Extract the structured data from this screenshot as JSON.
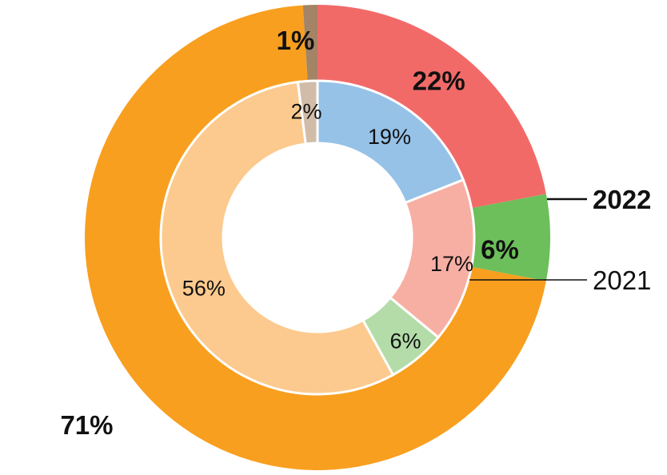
{
  "chart_data": {
    "type": "pie",
    "rings": [
      {
        "name": "2022",
        "slices": [
          {
            "value": 22,
            "label": "22%",
            "color": "#f26a68"
          },
          {
            "value": 6,
            "label": "6%",
            "color": "#6cbf5a"
          },
          {
            "value": 71,
            "label": "71%",
            "color": "#f89f1f"
          },
          {
            "value": 1,
            "label": "1%",
            "color": "#a38466"
          }
        ]
      },
      {
        "name": "2021",
        "slices": [
          {
            "value": 19,
            "label": "19%",
            "color": "#96c2e8"
          },
          {
            "value": 17,
            "label": "17%",
            "color": "#f7afa4"
          },
          {
            "value": 6,
            "label": "6%",
            "color": "#b3dca9"
          },
          {
            "value": 56,
            "label": "56%",
            "color": "#fcca8e"
          },
          {
            "value": 2,
            "label": "2%",
            "color": "#d1bca8"
          }
        ]
      }
    ]
  }
}
